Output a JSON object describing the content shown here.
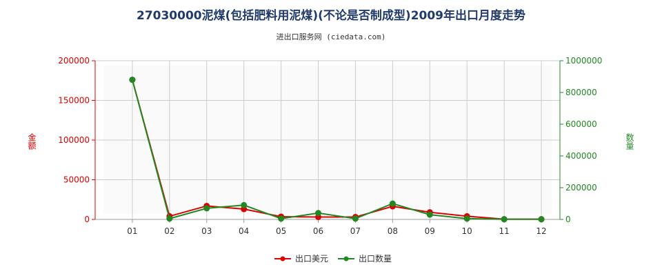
{
  "chart_data": {
    "type": "line",
    "title": "27030000泥煤(包括肥料用泥煤)(不论是否制成型)2009年出口月度走势",
    "subtitle": "进出口服务网 (ciedata.com)",
    "categories": [
      "01",
      "02",
      "03",
      "04",
      "05",
      "06",
      "07",
      "08",
      "09",
      "10",
      "11",
      "12"
    ],
    "y_left": {
      "label": "金额",
      "ylim": [
        0,
        200000
      ],
      "ticks": [
        0,
        50000,
        100000,
        150000,
        200000
      ],
      "tick_labels": [
        "0",
        "50000",
        "100000",
        "150000",
        "200000"
      ],
      "color": "#dd0000"
    },
    "y_right": {
      "label": "数量",
      "ylim": [
        0,
        1000000
      ],
      "ticks": [
        0,
        200000,
        400000,
        600000,
        800000,
        1000000
      ],
      "tick_labels": [
        "0",
        "200000",
        "400000",
        "600000",
        "800000",
        "1000000"
      ],
      "color": "#228822"
    },
    "series": [
      {
        "name": "出口美元",
        "axis": "left",
        "color": "#dd0000",
        "values": [
          176000,
          4000,
          17000,
          13000,
          3500,
          3000,
          3000,
          16500,
          9000,
          4000,
          300,
          300
        ]
      },
      {
        "name": "出口数量",
        "axis": "right",
        "color": "#228822",
        "values": [
          880000,
          5000,
          70000,
          90000,
          5000,
          40000,
          5000,
          100000,
          30000,
          5000,
          1000,
          1000
        ]
      }
    ],
    "grid": true,
    "legend_position": "bottom-center"
  }
}
